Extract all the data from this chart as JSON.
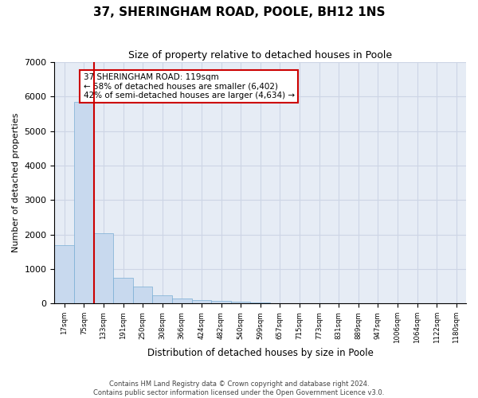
{
  "title1": "37, SHERINGHAM ROAD, POOLE, BH12 1NS",
  "title2": "Size of property relative to detached houses in Poole",
  "xlabel": "Distribution of detached houses by size in Poole",
  "ylabel": "Number of detached properties",
  "bar_color": "#c8d9ee",
  "bar_edge_color": "#7aadd4",
  "grid_color": "#cdd5e5",
  "background_color": "#e6ecf5",
  "vline_color": "#cc0000",
  "annotation_text": "37 SHERINGHAM ROAD: 119sqm\n← 58% of detached houses are smaller (6,402)\n42% of semi-detached houses are larger (4,634) →",
  "annotation_box_color": "#ffffff",
  "annotation_box_edge": "#cc0000",
  "bin_labels": [
    "17sqm",
    "75sqm",
    "133sqm",
    "191sqm",
    "250sqm",
    "308sqm",
    "366sqm",
    "424sqm",
    "482sqm",
    "540sqm",
    "599sqm",
    "657sqm",
    "715sqm",
    "773sqm",
    "831sqm",
    "889sqm",
    "947sqm",
    "1006sqm",
    "1064sqm",
    "1122sqm",
    "1180sqm"
  ],
  "values": [
    1700,
    5850,
    2050,
    750,
    500,
    250,
    150,
    100,
    70,
    45,
    25,
    12,
    7,
    4,
    3,
    2,
    1,
    1,
    1,
    1,
    0
  ],
  "ylim": [
    0,
    7000
  ],
  "yticks": [
    0,
    1000,
    2000,
    3000,
    4000,
    5000,
    6000,
    7000
  ],
  "vline_x_index": 1.5,
  "footer1": "Contains HM Land Registry data © Crown copyright and database right 2024.",
  "footer2": "Contains public sector information licensed under the Open Government Licence v3.0."
}
